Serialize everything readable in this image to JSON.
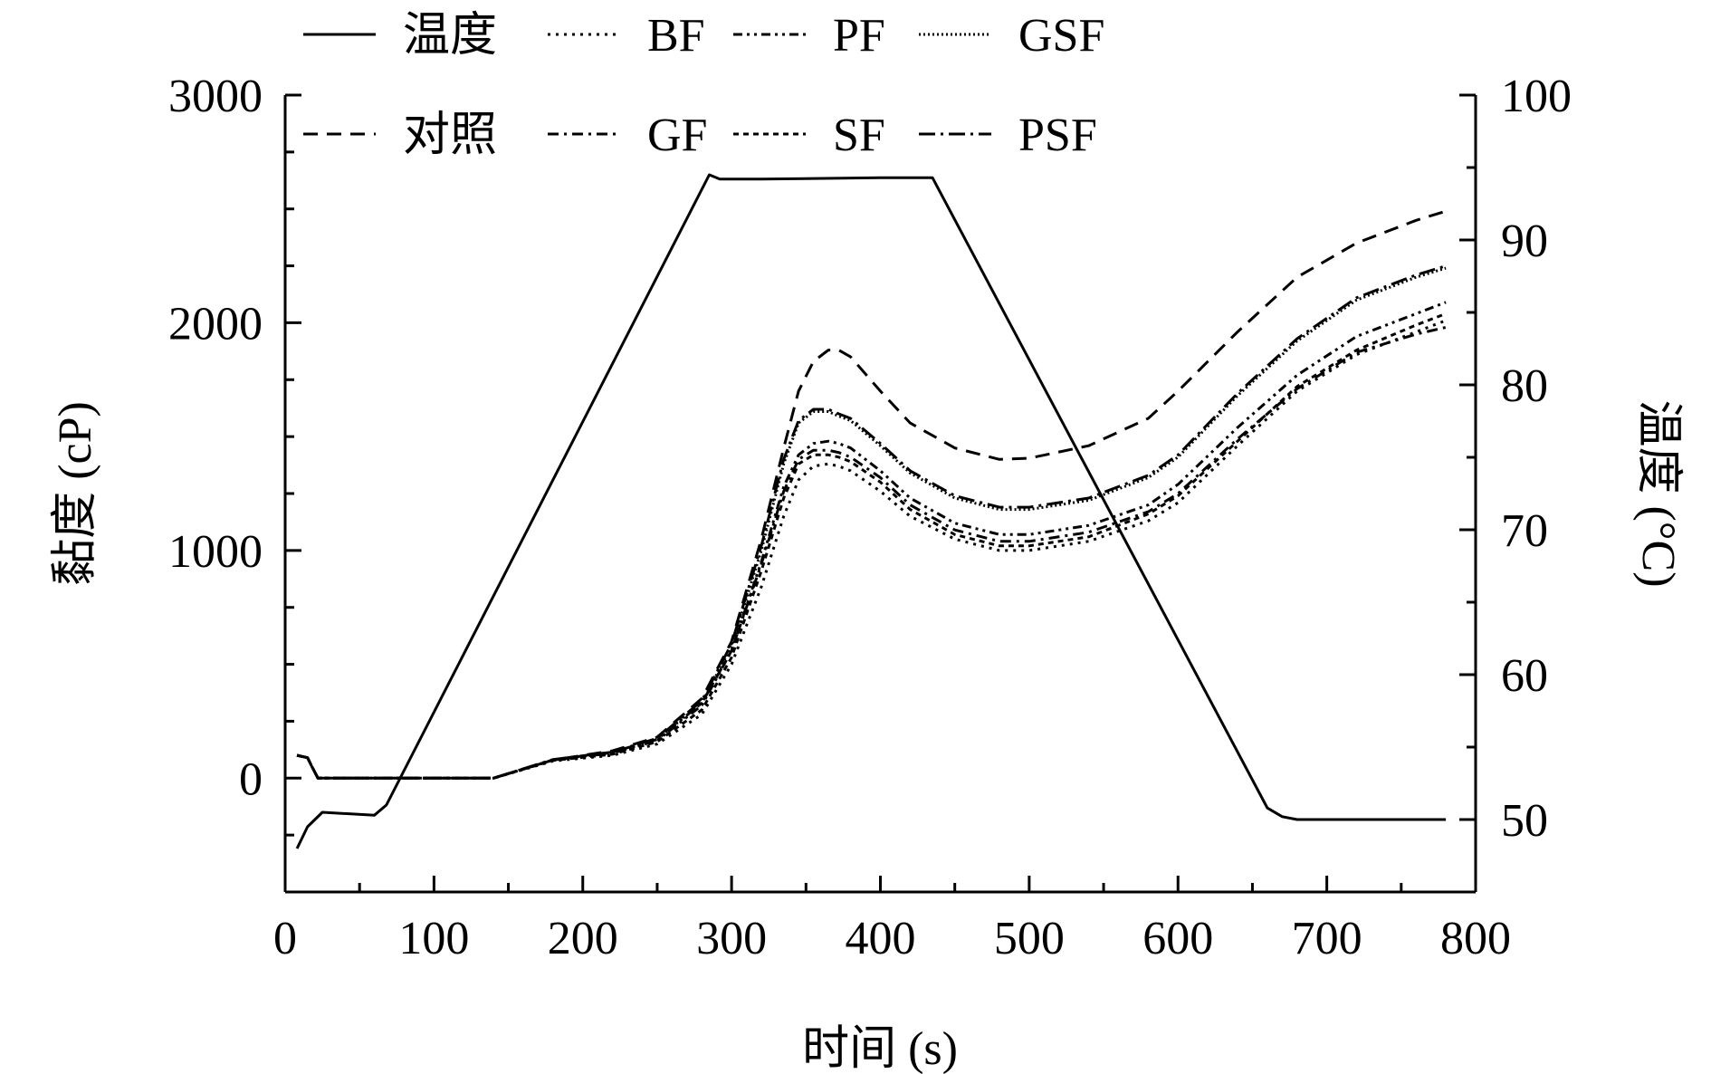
{
  "chart_data": {
    "type": "line",
    "title": "",
    "xlabel": "时间 (s)",
    "ylabel": "黏度 (cP)",
    "y2label": "温度 (°C)",
    "xlim": [
      0,
      800
    ],
    "ylim": [
      -500,
      3000
    ],
    "y2lim": [
      45,
      100
    ],
    "x_ticks": [
      "0",
      "100",
      "200",
      "300",
      "400",
      "500",
      "600",
      "700",
      "800"
    ],
    "y_ticks": [
      "0",
      "1000",
      "2000",
      "3000"
    ],
    "y2_ticks": [
      "50",
      "60",
      "70",
      "80",
      "90",
      "100"
    ],
    "grid": false,
    "legend_position": "top",
    "legend": [
      {
        "label": "温度",
        "series": "temperature"
      },
      {
        "label": "BF",
        "series": "BF"
      },
      {
        "label": "PF",
        "series": "PF"
      },
      {
        "label": "GSF",
        "series": "GSF"
      },
      {
        "label": "对照",
        "series": "control"
      },
      {
        "label": "GF",
        "series": "GF"
      },
      {
        "label": "SF",
        "series": "SF"
      },
      {
        "label": "PSF",
        "series": "PSF"
      }
    ],
    "temperature": {
      "name": "温度",
      "axis": "right",
      "style": "solid",
      "x": [
        8,
        15,
        25,
        60,
        68,
        285,
        292,
        320,
        400,
        435,
        660,
        670,
        680,
        700,
        780
      ],
      "values": [
        48.0,
        49.5,
        50.5,
        50.3,
        51.0,
        94.5,
        94.2,
        94.2,
        94.3,
        94.3,
        50.8,
        50.2,
        50.0,
        50.0,
        50.0
      ]
    },
    "series": [
      {
        "name": "对照",
        "axis": "left",
        "style": "dashed",
        "x": [
          8,
          15,
          18,
          22,
          25,
          60,
          100,
          140,
          180,
          220,
          250,
          280,
          300,
          320,
          335,
          345,
          355,
          365,
          372,
          380,
          400,
          420,
          450,
          480,
          500,
          540,
          580,
          600,
          640,
          680,
          720,
          760,
          780
        ],
        "values": [
          100,
          90,
          50,
          0,
          0,
          0,
          0,
          0,
          80,
          120,
          180,
          350,
          600,
          1050,
          1450,
          1700,
          1830,
          1880,
          1880,
          1850,
          1700,
          1560,
          1450,
          1400,
          1405,
          1460,
          1580,
          1700,
          1960,
          2200,
          2350,
          2450,
          2490
        ]
      },
      {
        "name": "BF",
        "axis": "left",
        "style": "dotted",
        "x": [
          8,
          15,
          18,
          22,
          25,
          60,
          100,
          140,
          180,
          220,
          250,
          280,
          300,
          320,
          335,
          345,
          355,
          365,
          372,
          380,
          400,
          420,
          450,
          480,
          500,
          540,
          580,
          600,
          640,
          680,
          720,
          760,
          780
        ],
        "values": [
          100,
          90,
          50,
          0,
          0,
          0,
          0,
          0,
          75,
          100,
          150,
          280,
          500,
          840,
          1150,
          1310,
          1370,
          1380,
          1370,
          1350,
          1260,
          1150,
          1050,
          1000,
          1000,
          1040,
          1130,
          1210,
          1460,
          1700,
          1860,
          1960,
          2010
        ]
      },
      {
        "name": "PF",
        "axis": "left",
        "style": "dash-dot-dot",
        "x": [
          8,
          15,
          18,
          22,
          25,
          60,
          100,
          140,
          180,
          220,
          250,
          280,
          300,
          320,
          335,
          345,
          355,
          365,
          372,
          380,
          400,
          420,
          450,
          480,
          500,
          540,
          580,
          600,
          640,
          680,
          720,
          760,
          780
        ],
        "values": [
          100,
          90,
          50,
          0,
          0,
          0,
          0,
          0,
          80,
          110,
          165,
          320,
          560,
          950,
          1280,
          1420,
          1470,
          1480,
          1470,
          1450,
          1350,
          1230,
          1120,
          1070,
          1070,
          1110,
          1200,
          1290,
          1540,
          1770,
          1940,
          2040,
          2090
        ]
      },
      {
        "name": "GSF",
        "axis": "left",
        "style": "dense-dot",
        "x": [
          8,
          15,
          18,
          22,
          25,
          60,
          100,
          140,
          180,
          220,
          250,
          280,
          300,
          320,
          335,
          345,
          355,
          365,
          372,
          380,
          400,
          420,
          450,
          480,
          500,
          540,
          580,
          600,
          640,
          680,
          720,
          760,
          780
        ],
        "values": [
          100,
          90,
          50,
          0,
          0,
          0,
          0,
          0,
          80,
          110,
          170,
          330,
          580,
          1000,
          1380,
          1560,
          1610,
          1610,
          1590,
          1570,
          1460,
          1340,
          1230,
          1180,
          1180,
          1220,
          1320,
          1410,
          1680,
          1920,
          2100,
          2200,
          2240
        ]
      },
      {
        "name": "GF",
        "axis": "left",
        "style": "dash-dot",
        "x": [
          8,
          15,
          18,
          22,
          25,
          60,
          100,
          140,
          180,
          220,
          250,
          280,
          300,
          320,
          335,
          345,
          355,
          365,
          372,
          380,
          400,
          420,
          450,
          480,
          500,
          540,
          580,
          600,
          640,
          680,
          720,
          760,
          780
        ],
        "values": [
          100,
          90,
          50,
          0,
          0,
          0,
          0,
          0,
          80,
          115,
          170,
          330,
          560,
          940,
          1260,
          1400,
          1440,
          1440,
          1430,
          1410,
          1320,
          1200,
          1090,
          1040,
          1040,
          1080,
          1170,
          1250,
          1490,
          1710,
          1870,
          1950,
          1980
        ]
      },
      {
        "name": "SF",
        "axis": "left",
        "style": "short-dash",
        "x": [
          8,
          15,
          18,
          22,
          25,
          60,
          100,
          140,
          180,
          220,
          250,
          280,
          300,
          320,
          335,
          345,
          355,
          365,
          372,
          380,
          400,
          420,
          450,
          480,
          500,
          540,
          580,
          600,
          640,
          680,
          720,
          760,
          780
        ],
        "values": [
          100,
          90,
          50,
          0,
          0,
          0,
          0,
          0,
          78,
          105,
          160,
          300,
          530,
          910,
          1230,
          1380,
          1420,
          1420,
          1410,
          1390,
          1300,
          1180,
          1070,
          1020,
          1020,
          1060,
          1160,
          1240,
          1480,
          1720,
          1880,
          1990,
          2040
        ]
      },
      {
        "name": "PSF",
        "axis": "left",
        "style": "long-dash-dot",
        "x": [
          8,
          15,
          18,
          22,
          25,
          60,
          100,
          140,
          180,
          220,
          250,
          280,
          300,
          320,
          335,
          345,
          355,
          365,
          372,
          380,
          400,
          420,
          450,
          480,
          500,
          540,
          580,
          600,
          640,
          680,
          720,
          760,
          780
        ],
        "values": [
          100,
          90,
          50,
          0,
          0,
          0,
          0,
          0,
          82,
          115,
          175,
          340,
          590,
          1020,
          1400,
          1570,
          1620,
          1620,
          1600,
          1580,
          1470,
          1350,
          1240,
          1190,
          1190,
          1230,
          1330,
          1420,
          1690,
          1930,
          2110,
          2210,
          2250
        ]
      }
    ]
  }
}
